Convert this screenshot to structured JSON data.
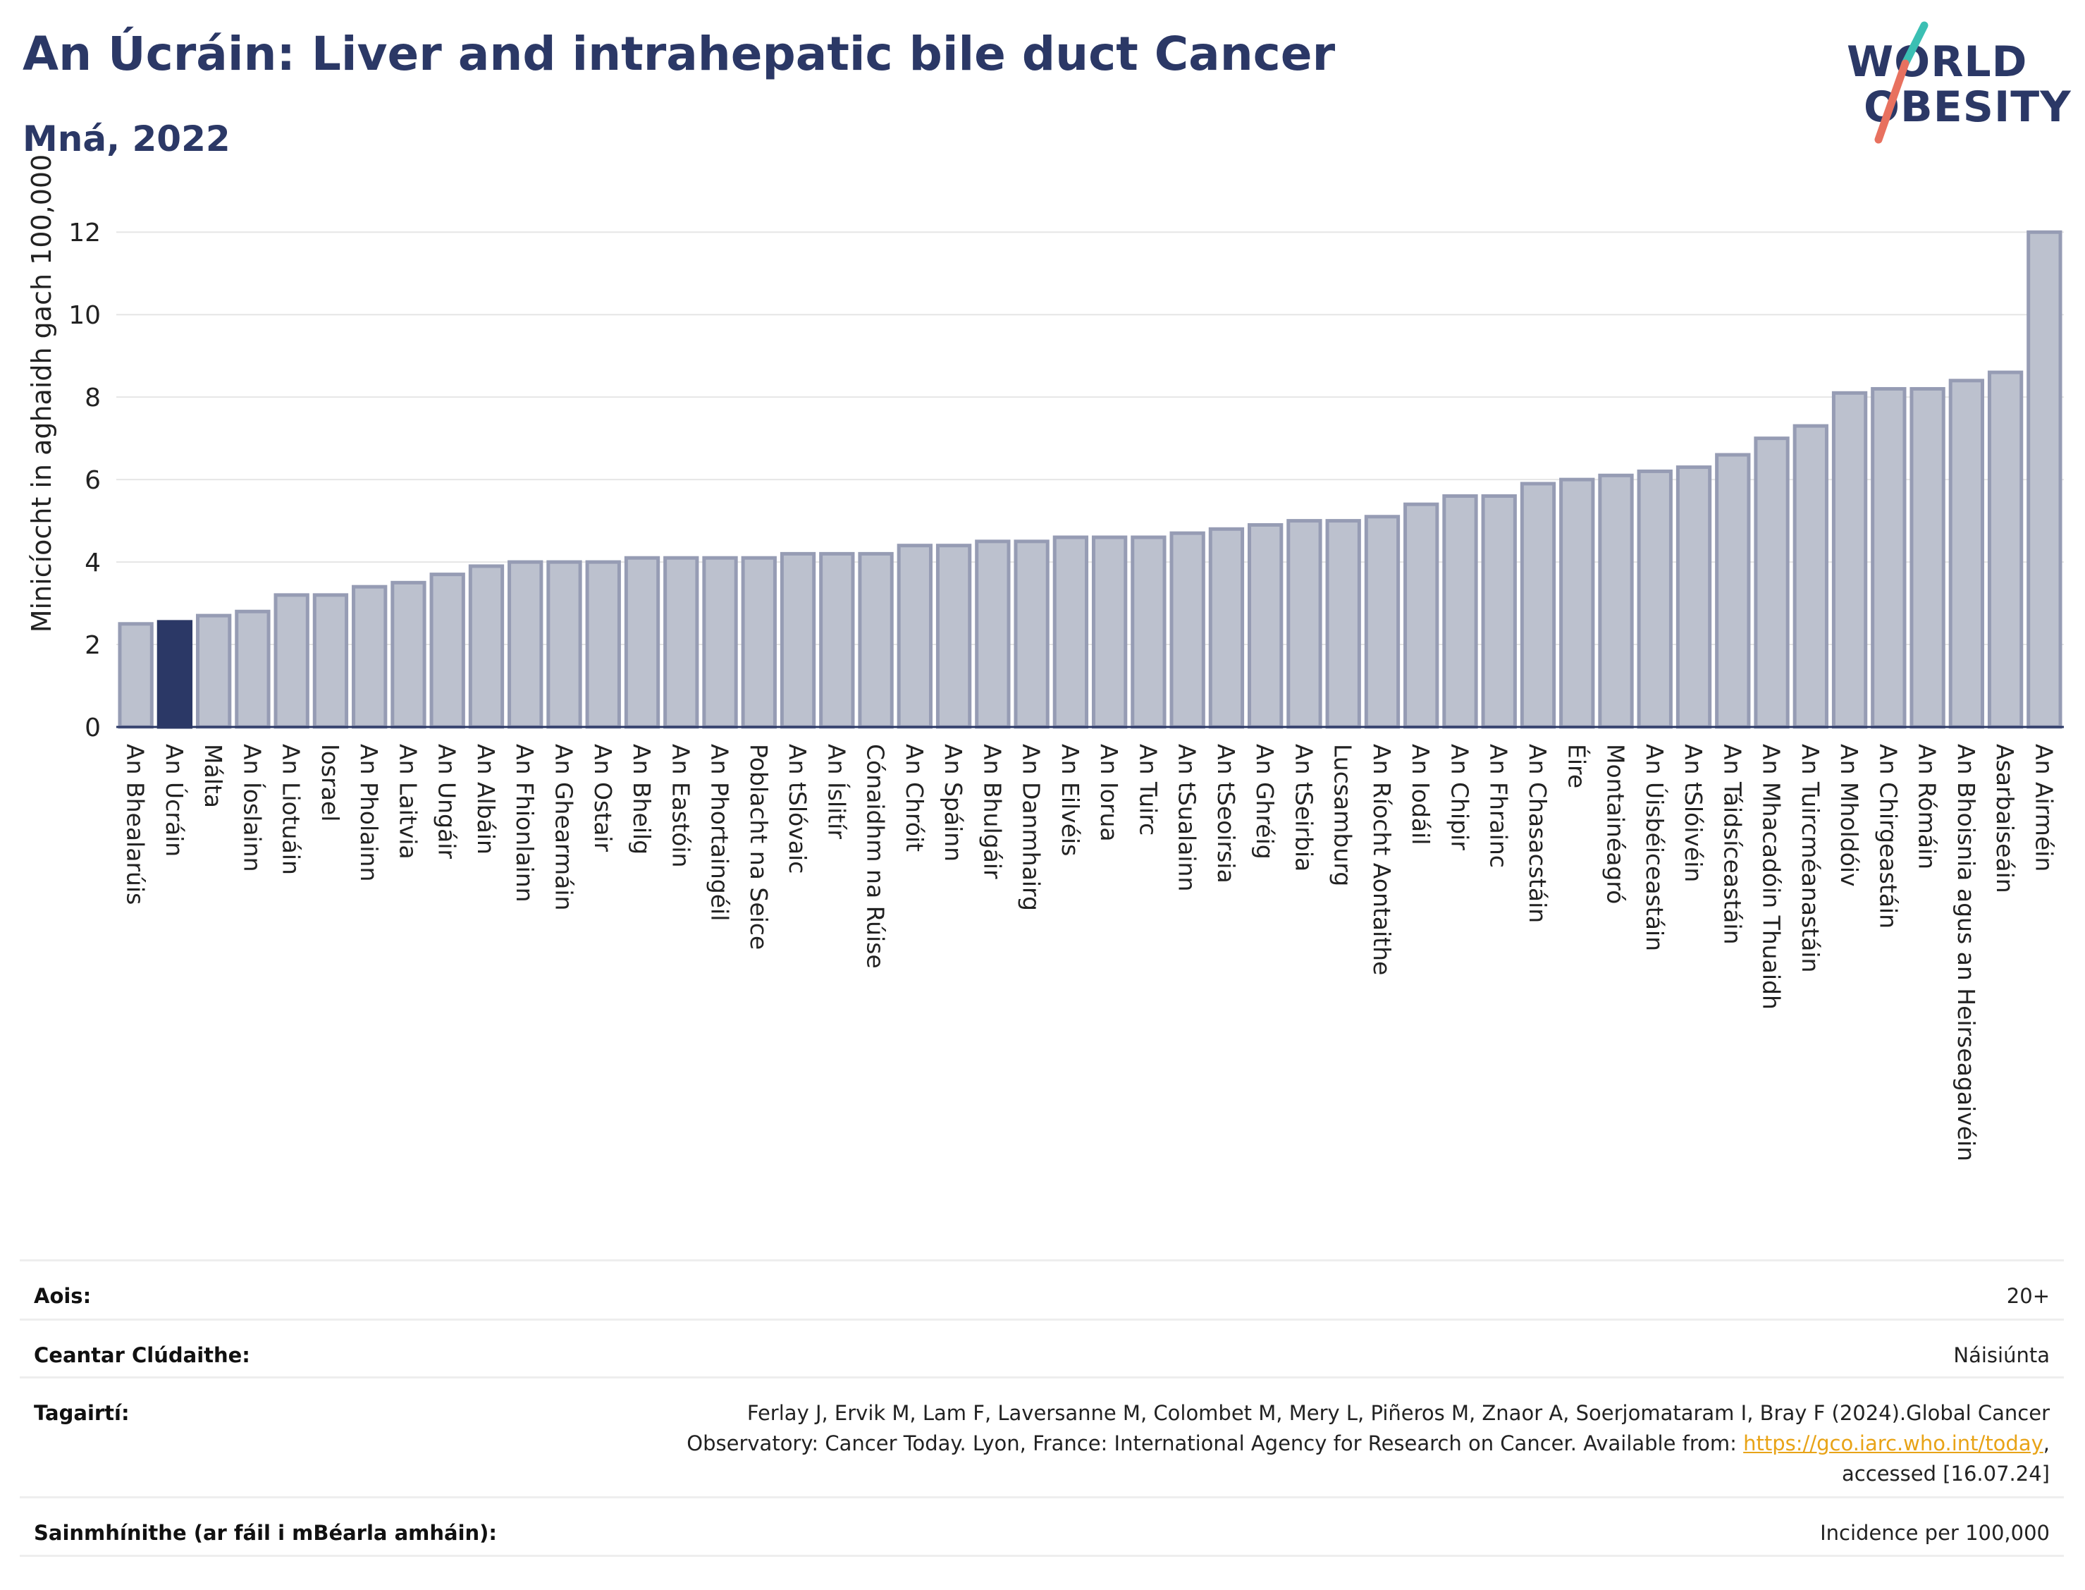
{
  "header": {
    "title": "An Úcráin: Liver and intrahepatic bile duct Cancer",
    "subtitle": "Mná, 2022"
  },
  "logo": {
    "line1": "WORLD",
    "line2": "OBESITY"
  },
  "colors": {
    "bar": "#bcc1ce",
    "bar_border": "#969cb4",
    "highlight": "#2b3866",
    "title": "#2b3866",
    "gridline": "#e6e6e6"
  },
  "chart_data": {
    "type": "bar",
    "ylabel": "Minicíocht in aghaidh gach 100,000",
    "ylim": [
      0,
      12.5
    ],
    "yticks": [
      0,
      2,
      4,
      6,
      8,
      10,
      12
    ],
    "grid": true,
    "highlight_category": "An Úcráin",
    "categories": [
      "An Bhealarúis",
      "An Úcráin",
      "Málta",
      "An Íoslainn",
      "An Liotuáin",
      "Iosrael",
      "An Pholainn",
      "An Laitvia",
      "An Ungáir",
      "An Albáin",
      "An Fhionlainn",
      "An Ghearmáin",
      "An Ostair",
      "An Bheilg",
      "An Eastóin",
      "An Phortaingéil",
      "Poblacht na Seice",
      "An tSlóvaic",
      "An Íslitír",
      "Cónaidhm na Rúise",
      "An Chróit",
      "An Spáinn",
      "An Bhulgáir",
      "An Danmhairg",
      "An Eilvéis",
      "An Iorua",
      "An Tuirc",
      "An tSualainn",
      "An tSeoirsia",
      "An Ghréig",
      "An tSeirbia",
      "Lucsamburg",
      "An Ríocht Aontaithe",
      "An Iodáil",
      "An Chipir",
      "An Fhrainc",
      "An Chasacstáin",
      "Éire",
      "Montainéagró",
      "An Úisbéiceastáin",
      "An tSlóivéin",
      "An Táidsíceastáin",
      "An Mhacadóin Thuaidh",
      "An Tuircméanastáin",
      "An Mholdóiv",
      "An Chirgeastáin",
      "An Rómáin",
      "An Bhoisnia agus an Heirseagaivéin",
      "Asarbaiseáin",
      "An Airméin"
    ],
    "values": [
      2.5,
      2.55,
      2.7,
      2.8,
      3.2,
      3.2,
      3.4,
      3.5,
      3.7,
      3.9,
      4.0,
      4.0,
      4.0,
      4.1,
      4.1,
      4.1,
      4.1,
      4.2,
      4.2,
      4.2,
      4.4,
      4.4,
      4.5,
      4.5,
      4.6,
      4.6,
      4.6,
      4.7,
      4.8,
      4.9,
      5.0,
      5.0,
      5.1,
      5.4,
      5.6,
      5.6,
      5.9,
      6.0,
      6.1,
      6.2,
      6.3,
      6.6,
      7.0,
      7.3,
      8.1,
      8.2,
      8.2,
      8.4,
      8.6,
      12.0
    ]
  },
  "info": {
    "age_label": "Aois:",
    "age_value": "20+",
    "area_label": "Ceantar Clúdaithe:",
    "area_value": "Náisiúnta",
    "refs_label": "Tagairtí:",
    "refs_line1": "Ferlay J, Ervik M, Lam F, Laversanne M, Colombet M, Mery L, Piñeros M, Znaor A, Soerjomataram I, Bray F (2024).Global Cancer",
    "refs_line2_prefix": "Observatory: Cancer Today. Lyon, France: International Agency for Research on Cancer. Available from: ",
    "refs_link": "https://gco.iarc.who.int/today",
    "refs_line2_suffix": ",",
    "refs_line3": "accessed [16.07.24]",
    "defs_label": "Sainmhínithe (ar fáil i mBéarla amháin):",
    "defs_value": "Incidence per 100,000"
  }
}
